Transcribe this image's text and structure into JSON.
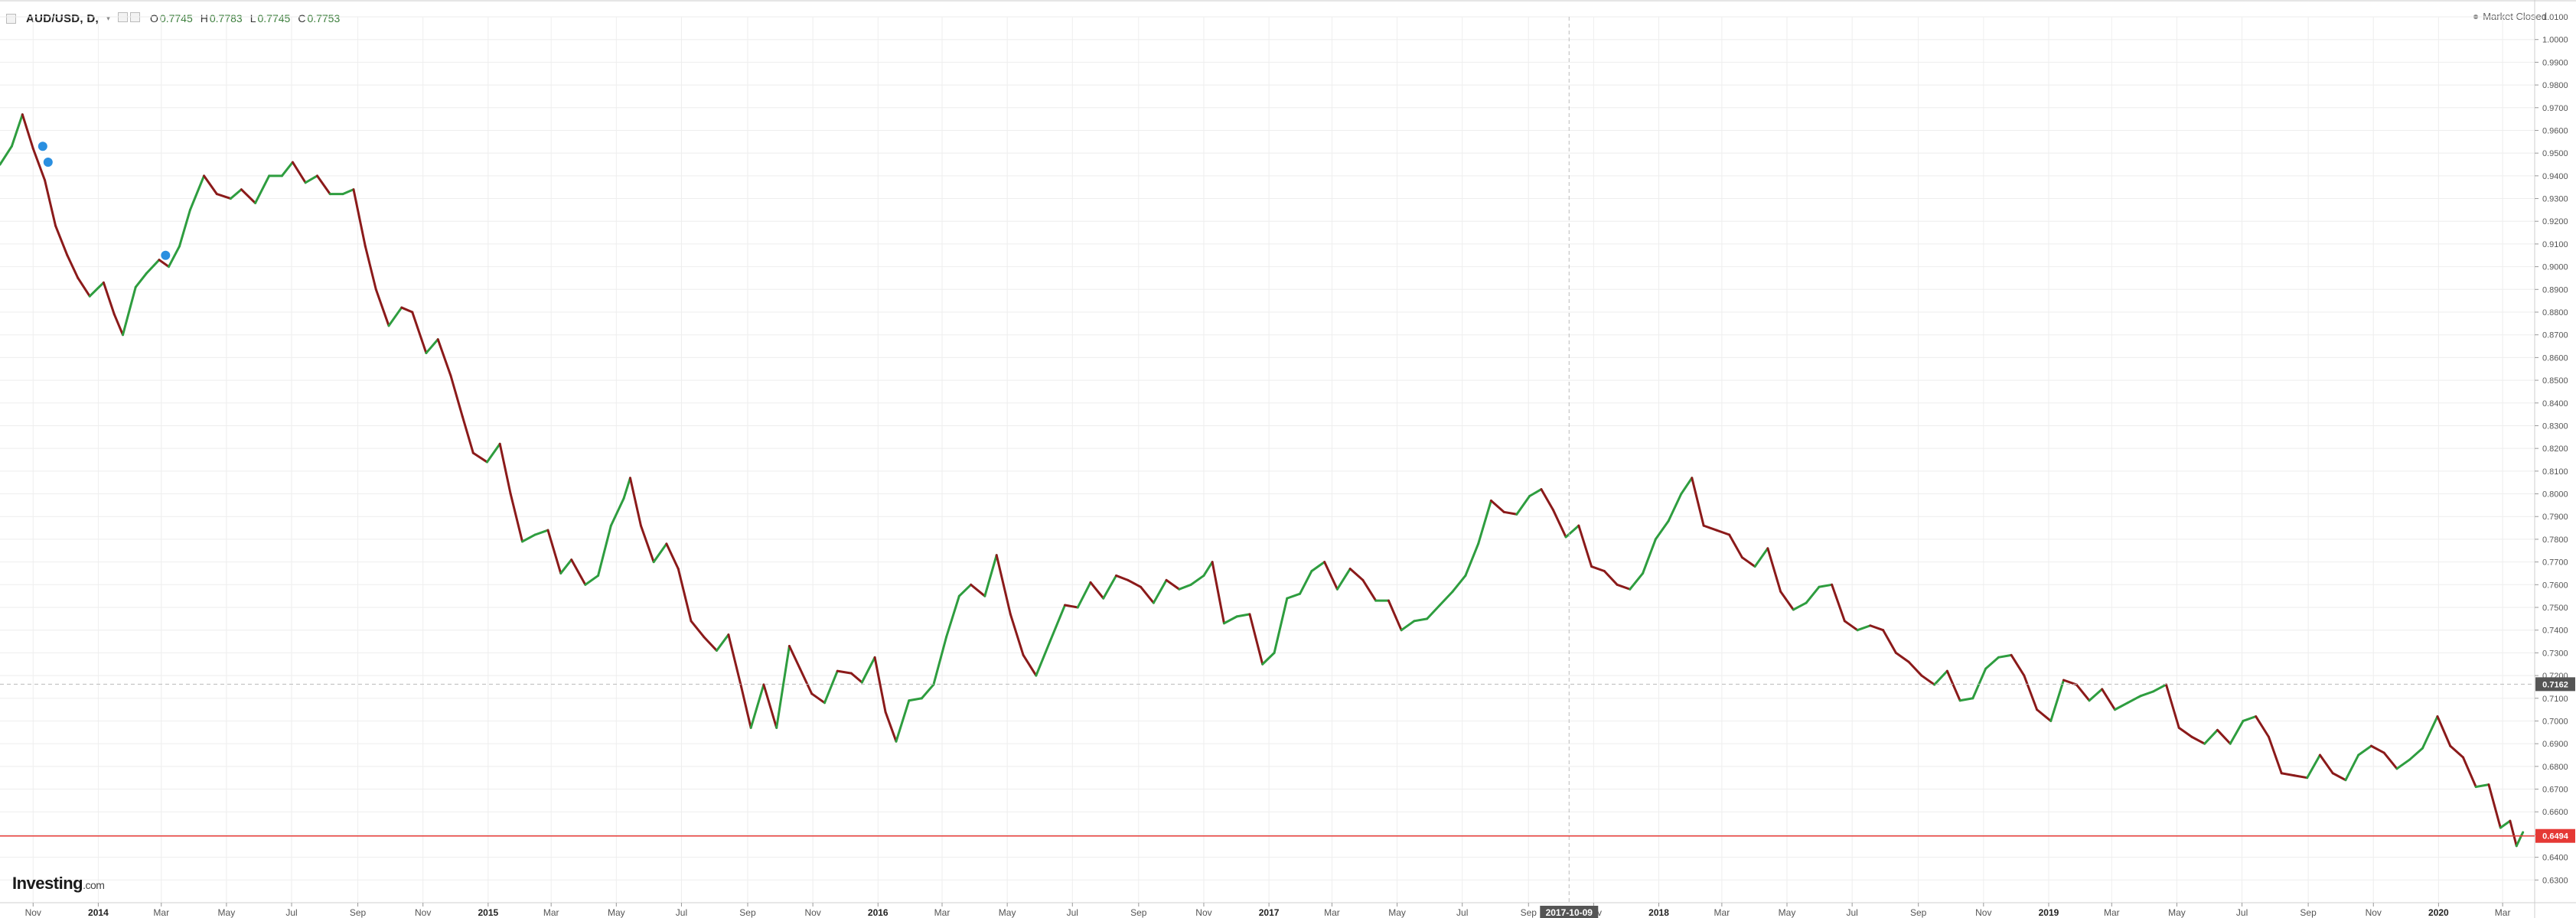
{
  "header": {
    "symbol": "AUD/USD, D,",
    "open_label": "O",
    "open": "0.7745",
    "high_label": "H",
    "high": "0.7783",
    "low_label": "L",
    "low": "0.7745",
    "close_label": "C",
    "close": "0.7753"
  },
  "market_status": "Market Closed",
  "logo": {
    "main": "Investing",
    "suffix": ".com"
  },
  "colors": {
    "up": "#2e9d3f",
    "down": "#8b1a1a",
    "grid": "#eeeeee",
    "last_price": "#e53935",
    "crosshair_label": "#555555"
  },
  "chart_data": {
    "type": "line",
    "title": "AUD/USD, D,",
    "xlabel": "",
    "ylabel": "",
    "x_range": [
      "2013-10-01",
      "2020-03-31"
    ],
    "ylim": [
      0.62,
      1.01
    ],
    "y_ticks": [
      "1.0100",
      "1.0000",
      "0.9900",
      "0.9800",
      "0.9700",
      "0.9600",
      "0.9500",
      "0.9400",
      "0.9300",
      "0.9200",
      "0.9100",
      "0.9000",
      "0.8900",
      "0.8800",
      "0.8700",
      "0.8600",
      "0.8500",
      "0.8400",
      "0.8300",
      "0.8200",
      "0.8100",
      "0.8000",
      "0.7900",
      "0.7800",
      "0.7700",
      "0.7600",
      "0.7500",
      "0.7400",
      "0.7300",
      "0.7200",
      "0.7100",
      "0.7000",
      "0.6900",
      "0.6800",
      "0.6700",
      "0.6600",
      "0.6500",
      "0.6400",
      "0.6300"
    ],
    "x_ticks": [
      {
        "date": "2013-11-01",
        "label": "Nov"
      },
      {
        "date": "2014-01-01",
        "label": "2014"
      },
      {
        "date": "2014-03-01",
        "label": "Mar"
      },
      {
        "date": "2014-05-01",
        "label": "May"
      },
      {
        "date": "2014-07-01",
        "label": "Jul"
      },
      {
        "date": "2014-09-01",
        "label": "Sep"
      },
      {
        "date": "2014-11-01",
        "label": "Nov"
      },
      {
        "date": "2015-01-01",
        "label": "2015"
      },
      {
        "date": "2015-03-01",
        "label": "Mar"
      },
      {
        "date": "2015-05-01",
        "label": "May"
      },
      {
        "date": "2015-07-01",
        "label": "Jul"
      },
      {
        "date": "2015-09-01",
        "label": "Sep"
      },
      {
        "date": "2015-11-01",
        "label": "Nov"
      },
      {
        "date": "2016-01-01",
        "label": "2016"
      },
      {
        "date": "2016-03-01",
        "label": "Mar"
      },
      {
        "date": "2016-05-01",
        "label": "May"
      },
      {
        "date": "2016-07-01",
        "label": "Jul"
      },
      {
        "date": "2016-09-01",
        "label": "Sep"
      },
      {
        "date": "2016-11-01",
        "label": "Nov"
      },
      {
        "date": "2017-01-01",
        "label": "2017"
      },
      {
        "date": "2017-03-01",
        "label": "Mar"
      },
      {
        "date": "2017-05-01",
        "label": "May"
      },
      {
        "date": "2017-07-01",
        "label": "Jul"
      },
      {
        "date": "2017-09-01",
        "label": "Sep"
      },
      {
        "date": "2017-11-01",
        "label": "Nov"
      },
      {
        "date": "2018-01-01",
        "label": "2018"
      },
      {
        "date": "2018-03-01",
        "label": "Mar"
      },
      {
        "date": "2018-05-01",
        "label": "May"
      },
      {
        "date": "2018-07-01",
        "label": "Jul"
      },
      {
        "date": "2018-09-01",
        "label": "Sep"
      },
      {
        "date": "2018-11-01",
        "label": "Nov"
      },
      {
        "date": "2019-01-01",
        "label": "2019"
      },
      {
        "date": "2019-03-01",
        "label": "Mar"
      },
      {
        "date": "2019-05-01",
        "label": "May"
      },
      {
        "date": "2019-07-01",
        "label": "Jul"
      },
      {
        "date": "2019-09-01",
        "label": "Sep"
      },
      {
        "date": "2019-11-01",
        "label": "Nov"
      },
      {
        "date": "2020-01-01",
        "label": "2020"
      },
      {
        "date": "2020-03-01",
        "label": "Mar"
      }
    ],
    "crosshair": {
      "date": "2017-10-09",
      "label": "2017-10-09",
      "price": "0.7162"
    },
    "last_price": {
      "value": 0.6494,
      "label": "0.6494"
    },
    "series": [
      {
        "points": [
          [
            "2013-10-01",
            0.945
          ],
          [
            "2013-10-12",
            0.953
          ],
          [
            "2013-10-22",
            0.967
          ],
          [
            "2013-11-01",
            0.952
          ],
          [
            "2013-11-12",
            0.938
          ],
          [
            "2013-11-22",
            0.918
          ],
          [
            "2013-12-03",
            0.905
          ],
          [
            "2013-12-13",
            0.895
          ],
          [
            "2013-12-24",
            0.887
          ],
          [
            "2014-01-06",
            0.893
          ],
          [
            "2014-01-16",
            0.879
          ],
          [
            "2014-01-24",
            0.87
          ],
          [
            "2014-02-05",
            0.891
          ],
          [
            "2014-02-15",
            0.897
          ],
          [
            "2014-02-27",
            0.903
          ],
          [
            "2014-03-08",
            0.9
          ],
          [
            "2014-03-18",
            0.909
          ],
          [
            "2014-03-28",
            0.925
          ],
          [
            "2014-04-10",
            0.94
          ],
          [
            "2014-04-22",
            0.932
          ],
          [
            "2014-05-05",
            0.93
          ],
          [
            "2014-05-15",
            0.934
          ],
          [
            "2014-05-28",
            0.928
          ],
          [
            "2014-06-10",
            0.94
          ],
          [
            "2014-06-22",
            0.94
          ],
          [
            "2014-07-02",
            0.946
          ],
          [
            "2014-07-14",
            0.937
          ],
          [
            "2014-07-25",
            0.94
          ],
          [
            "2014-08-06",
            0.932
          ],
          [
            "2014-08-18",
            0.932
          ],
          [
            "2014-08-28",
            0.934
          ],
          [
            "2014-09-08",
            0.909
          ],
          [
            "2014-09-18",
            0.89
          ],
          [
            "2014-09-30",
            0.874
          ],
          [
            "2014-10-12",
            0.882
          ],
          [
            "2014-10-22",
            0.88
          ],
          [
            "2014-11-04",
            0.862
          ],
          [
            "2014-11-15",
            0.868
          ],
          [
            "2014-11-27",
            0.852
          ],
          [
            "2014-12-08",
            0.834
          ],
          [
            "2014-12-18",
            0.818
          ],
          [
            "2014-12-31",
            0.814
          ],
          [
            "2015-01-12",
            0.822
          ],
          [
            "2015-01-22",
            0.8
          ],
          [
            "2015-02-02",
            0.779
          ],
          [
            "2015-02-14",
            0.782
          ],
          [
            "2015-02-26",
            0.784
          ],
          [
            "2015-03-10",
            0.765
          ],
          [
            "2015-03-20",
            0.771
          ],
          [
            "2015-04-02",
            0.76
          ],
          [
            "2015-04-14",
            0.764
          ],
          [
            "2015-04-26",
            0.786
          ],
          [
            "2015-05-08",
            0.798
          ],
          [
            "2015-05-14",
            0.807
          ],
          [
            "2015-05-24",
            0.786
          ],
          [
            "2015-06-05",
            0.77
          ],
          [
            "2015-06-17",
            0.778
          ],
          [
            "2015-06-28",
            0.767
          ],
          [
            "2015-07-10",
            0.744
          ],
          [
            "2015-07-22",
            0.737
          ],
          [
            "2015-08-03",
            0.731
          ],
          [
            "2015-08-14",
            0.738
          ],
          [
            "2015-08-26",
            0.715
          ],
          [
            "2015-09-04",
            0.697
          ],
          [
            "2015-09-16",
            0.716
          ],
          [
            "2015-09-28",
            0.697
          ],
          [
            "2015-10-10",
            0.733
          ],
          [
            "2015-10-20",
            0.723
          ],
          [
            "2015-10-31",
            0.712
          ],
          [
            "2015-11-12",
            0.708
          ],
          [
            "2015-11-24",
            0.722
          ],
          [
            "2015-12-07",
            0.721
          ],
          [
            "2015-12-17",
            0.717
          ],
          [
            "2015-12-29",
            0.728
          ],
          [
            "2016-01-08",
            0.704
          ],
          [
            "2016-01-18",
            0.691
          ],
          [
            "2016-01-30",
            0.709
          ],
          [
            "2016-02-11",
            0.71
          ],
          [
            "2016-02-22",
            0.716
          ],
          [
            "2016-03-05",
            0.737
          ],
          [
            "2016-03-17",
            0.755
          ],
          [
            "2016-03-28",
            0.76
          ],
          [
            "2016-04-10",
            0.755
          ],
          [
            "2016-04-21",
            0.773
          ],
          [
            "2016-05-04",
            0.747
          ],
          [
            "2016-05-16",
            0.729
          ],
          [
            "2016-05-28",
            0.72
          ],
          [
            "2016-06-10",
            0.735
          ],
          [
            "2016-06-24",
            0.751
          ],
          [
            "2016-07-06",
            0.75
          ],
          [
            "2016-07-18",
            0.761
          ],
          [
            "2016-07-30",
            0.754
          ],
          [
            "2016-08-11",
            0.764
          ],
          [
            "2016-08-22",
            0.762
          ],
          [
            "2016-09-03",
            0.759
          ],
          [
            "2016-09-15",
            0.752
          ],
          [
            "2016-09-27",
            0.762
          ],
          [
            "2016-10-09",
            0.758
          ],
          [
            "2016-10-20",
            0.76
          ],
          [
            "2016-11-01",
            0.764
          ],
          [
            "2016-11-09",
            0.77
          ],
          [
            "2016-11-20",
            0.743
          ],
          [
            "2016-12-02",
            0.746
          ],
          [
            "2016-12-14",
            0.747
          ],
          [
            "2016-12-26",
            0.725
          ],
          [
            "2017-01-06",
            0.73
          ],
          [
            "2017-01-18",
            0.754
          ],
          [
            "2017-01-30",
            0.756
          ],
          [
            "2017-02-10",
            0.766
          ],
          [
            "2017-02-22",
            0.77
          ],
          [
            "2017-03-06",
            0.758
          ],
          [
            "2017-03-18",
            0.767
          ],
          [
            "2017-03-30",
            0.762
          ],
          [
            "2017-04-11",
            0.753
          ],
          [
            "2017-04-23",
            0.753
          ],
          [
            "2017-05-05",
            0.74
          ],
          [
            "2017-05-17",
            0.744
          ],
          [
            "2017-05-29",
            0.745
          ],
          [
            "2017-06-10",
            0.751
          ],
          [
            "2017-06-22",
            0.757
          ],
          [
            "2017-07-04",
            0.764
          ],
          [
            "2017-07-16",
            0.778
          ],
          [
            "2017-07-28",
            0.797
          ],
          [
            "2017-08-09",
            0.792
          ],
          [
            "2017-08-21",
            0.791
          ],
          [
            "2017-09-02",
            0.799
          ],
          [
            "2017-09-13",
            0.802
          ],
          [
            "2017-09-24",
            0.793
          ],
          [
            "2017-10-06",
            0.781
          ],
          [
            "2017-10-18",
            0.786
          ],
          [
            "2017-10-30",
            0.768
          ],
          [
            "2017-11-11",
            0.766
          ],
          [
            "2017-11-23",
            0.76
          ],
          [
            "2017-12-05",
            0.758
          ],
          [
            "2017-12-17",
            0.765
          ],
          [
            "2017-12-29",
            0.78
          ],
          [
            "2018-01-10",
            0.788
          ],
          [
            "2018-01-22",
            0.8
          ],
          [
            "2018-02-01",
            0.807
          ],
          [
            "2018-02-12",
            0.786
          ],
          [
            "2018-02-24",
            0.784
          ],
          [
            "2018-03-08",
            0.782
          ],
          [
            "2018-03-20",
            0.772
          ],
          [
            "2018-04-01",
            0.768
          ],
          [
            "2018-04-13",
            0.776
          ],
          [
            "2018-04-25",
            0.757
          ],
          [
            "2018-05-07",
            0.749
          ],
          [
            "2018-05-19",
            0.752
          ],
          [
            "2018-05-31",
            0.759
          ],
          [
            "2018-06-12",
            0.76
          ],
          [
            "2018-06-24",
            0.744
          ],
          [
            "2018-07-06",
            0.74
          ],
          [
            "2018-07-18",
            0.742
          ],
          [
            "2018-07-30",
            0.74
          ],
          [
            "2018-08-11",
            0.73
          ],
          [
            "2018-08-23",
            0.726
          ],
          [
            "2018-09-04",
            0.72
          ],
          [
            "2018-09-16",
            0.716
          ],
          [
            "2018-09-28",
            0.722
          ],
          [
            "2018-10-10",
            0.709
          ],
          [
            "2018-10-22",
            0.71
          ],
          [
            "2018-11-03",
            0.723
          ],
          [
            "2018-11-15",
            0.728
          ],
          [
            "2018-11-27",
            0.729
          ],
          [
            "2018-12-09",
            0.72
          ],
          [
            "2018-12-21",
            0.705
          ],
          [
            "2019-01-03",
            0.7
          ],
          [
            "2019-01-15",
            0.718
          ],
          [
            "2019-01-27",
            0.716
          ],
          [
            "2019-02-08",
            0.709
          ],
          [
            "2019-02-20",
            0.714
          ],
          [
            "2019-03-04",
            0.705
          ],
          [
            "2019-03-16",
            0.708
          ],
          [
            "2019-03-28",
            0.711
          ],
          [
            "2019-04-09",
            0.713
          ],
          [
            "2019-04-21",
            0.716
          ],
          [
            "2019-05-03",
            0.697
          ],
          [
            "2019-05-15",
            0.693
          ],
          [
            "2019-05-27",
            0.69
          ],
          [
            "2019-06-08",
            0.696
          ],
          [
            "2019-06-20",
            0.69
          ],
          [
            "2019-07-02",
            0.7
          ],
          [
            "2019-07-14",
            0.702
          ],
          [
            "2019-07-26",
            0.693
          ],
          [
            "2019-08-07",
            0.677
          ],
          [
            "2019-08-19",
            0.676
          ],
          [
            "2019-08-31",
            0.675
          ],
          [
            "2019-09-12",
            0.685
          ],
          [
            "2019-09-24",
            0.677
          ],
          [
            "2019-10-06",
            0.674
          ],
          [
            "2019-10-18",
            0.685
          ],
          [
            "2019-10-30",
            0.689
          ],
          [
            "2019-11-11",
            0.686
          ],
          [
            "2019-11-23",
            0.679
          ],
          [
            "2019-12-05",
            0.683
          ],
          [
            "2019-12-17",
            0.688
          ],
          [
            "2019-12-31",
            0.702
          ],
          [
            "2020-01-12",
            0.689
          ],
          [
            "2020-01-24",
            0.684
          ],
          [
            "2020-02-05",
            0.671
          ],
          [
            "2020-02-17",
            0.672
          ],
          [
            "2020-02-28",
            0.653
          ],
          [
            "2020-03-08",
            0.656
          ],
          [
            "2020-03-14",
            0.645
          ],
          [
            "2020-03-20",
            0.651
          ]
        ]
      }
    ]
  }
}
